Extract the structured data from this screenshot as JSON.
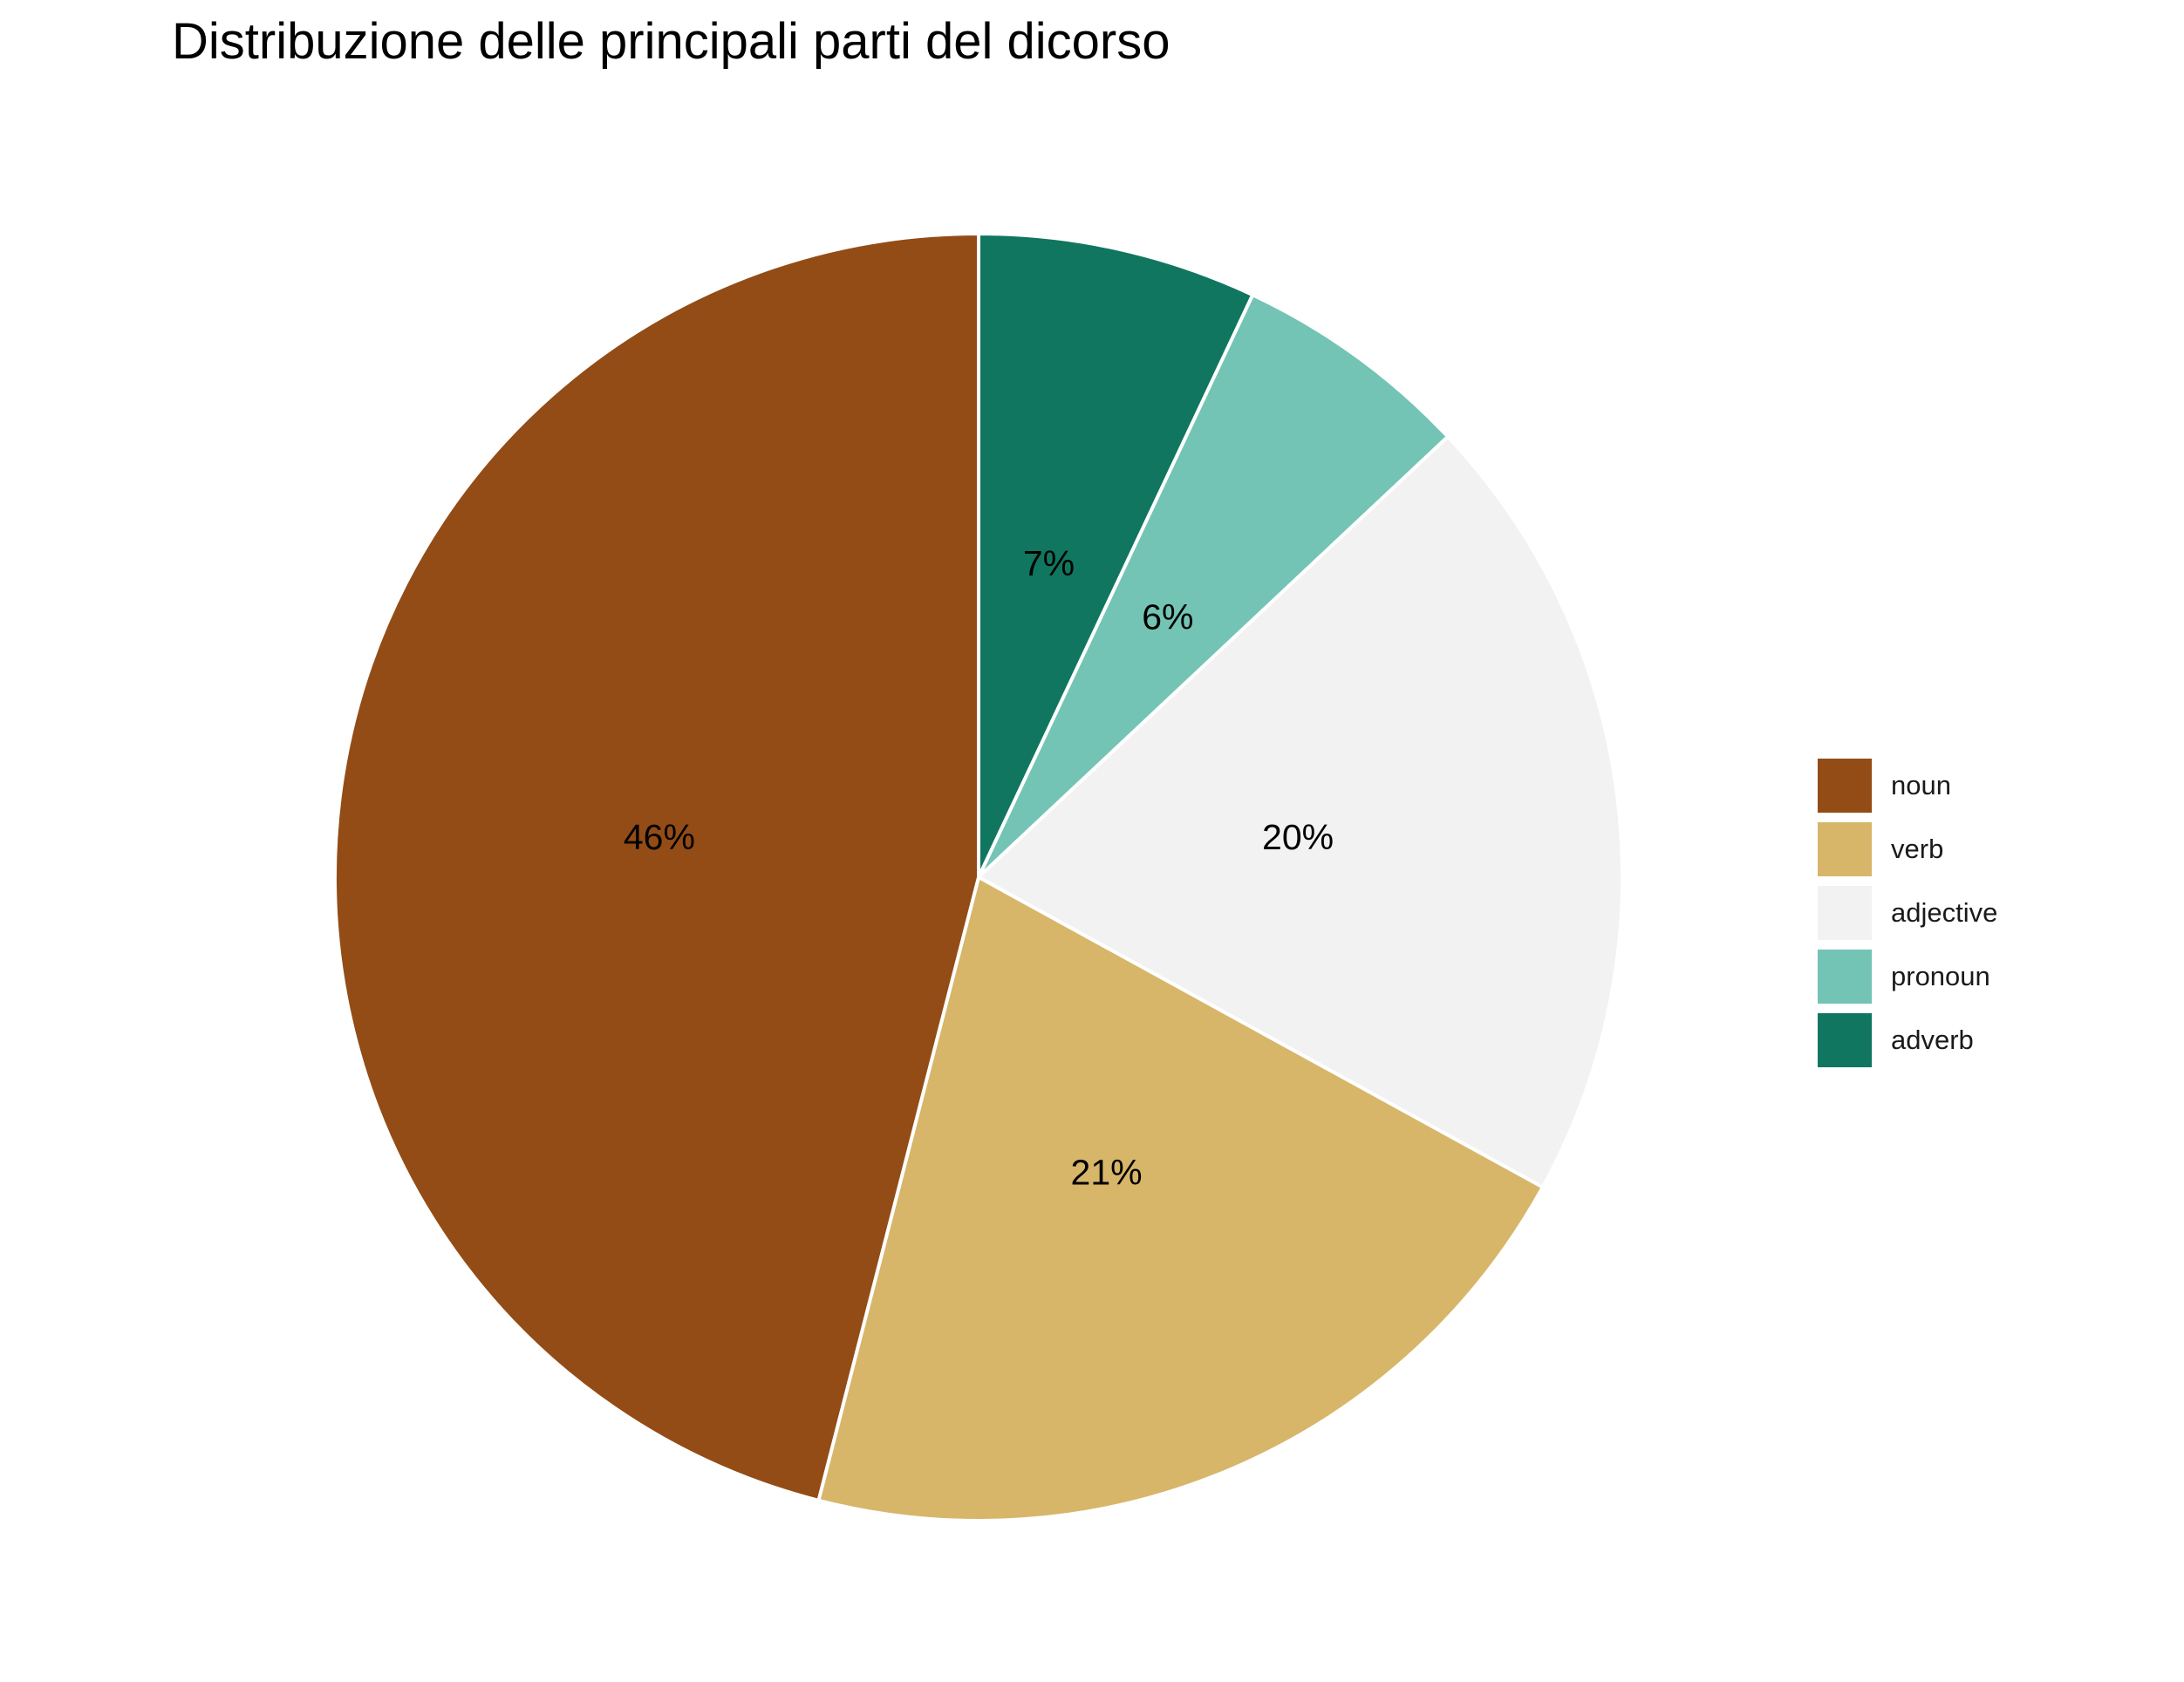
{
  "chart_data": {
    "type": "pie",
    "title": "Distribuzione delle principali parti del dicorso",
    "categories": [
      "noun",
      "verb",
      "adjective",
      "pronoun",
      "adverb"
    ],
    "values": [
      46,
      21,
      20,
      6,
      7
    ],
    "labels": [
      "46%",
      "21%",
      "20%",
      "6%",
      "7%"
    ],
    "colors": [
      "#934C16",
      "#D7B66A",
      "#F2F2F2",
      "#73C4B4",
      "#10765F"
    ],
    "slice_order_clockwise_from_top": [
      "adverb",
      "pronoun",
      "adjective",
      "verb",
      "noun"
    ],
    "legend_position": "right",
    "slice_border_color": "#FFFFFF"
  }
}
